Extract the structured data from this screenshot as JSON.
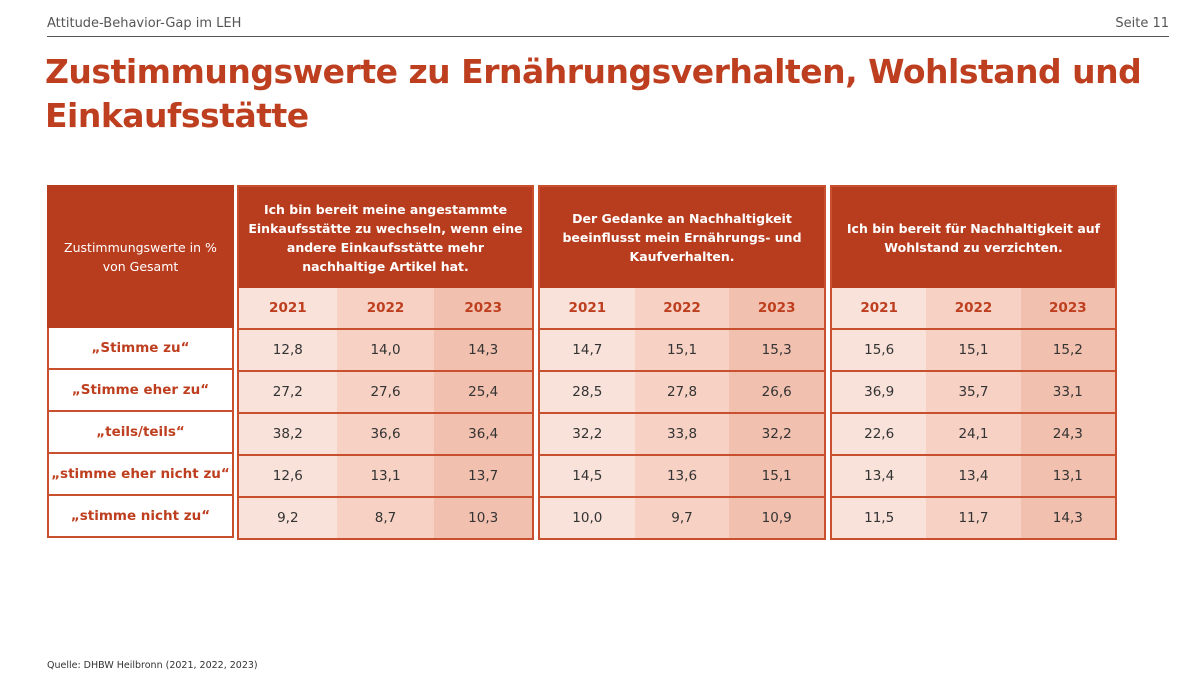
{
  "header": {
    "doc_title": "Attitude-Behavior-Gap im LEH",
    "page": "Seite 11"
  },
  "title": "Zustimmungswerte zu Ernährungsverhalten, Wohlstand und Einkaufsstätte",
  "table": {
    "corner_label": "Zustimmungswerte in % von Gesamt",
    "row_labels": [
      "„Stimme zu“",
      "„Stimme eher zu“",
      "„teils/teils“",
      "„stimme eher nicht zu“",
      "„stimme nicht zu“"
    ],
    "groups": [
      {
        "title": "Ich bin bereit meine angestammte Einkaufsstätte zu wechseln, wenn eine andere Einkaufsstätte mehr nachhaltige Artikel hat.",
        "years": [
          "2021",
          "2022",
          "2023"
        ],
        "rows": [
          [
            "12,8",
            "14,0",
            "14,3"
          ],
          [
            "27,2",
            "27,6",
            "25,4"
          ],
          [
            "38,2",
            "36,6",
            "36,4"
          ],
          [
            "12,6",
            "13,1",
            "13,7"
          ],
          [
            "9,2",
            "8,7",
            "10,3"
          ]
        ]
      },
      {
        "title": "Der Gedanke an Nachhaltigkeit beeinflusst mein Ernährungs- und Kaufverhalten.",
        "years": [
          "2021",
          "2022",
          "2023"
        ],
        "rows": [
          [
            "14,7",
            "15,1",
            "15,3"
          ],
          [
            "28,5",
            "27,8",
            "26,6"
          ],
          [
            "32,2",
            "33,8",
            "32,2"
          ],
          [
            "14,5",
            "13,6",
            "15,1"
          ],
          [
            "10,0",
            "9,7",
            "10,9"
          ]
        ]
      },
      {
        "title": "Ich bin bereit für Nachhaltigkeit auf Wohlstand zu verzichten.",
        "years": [
          "2021",
          "2022",
          "2023"
        ],
        "rows": [
          [
            "15,6",
            "15,1",
            "15,2"
          ],
          [
            "36,9",
            "35,7",
            "33,1"
          ],
          [
            "22,6",
            "24,1",
            "24,3"
          ],
          [
            "13,4",
            "13,4",
            "13,1"
          ],
          [
            "11,5",
            "11,7",
            "14,3"
          ]
        ]
      }
    ]
  },
  "source": "Quelle: DHBW Heilbronn (2021, 2022, 2023)"
}
